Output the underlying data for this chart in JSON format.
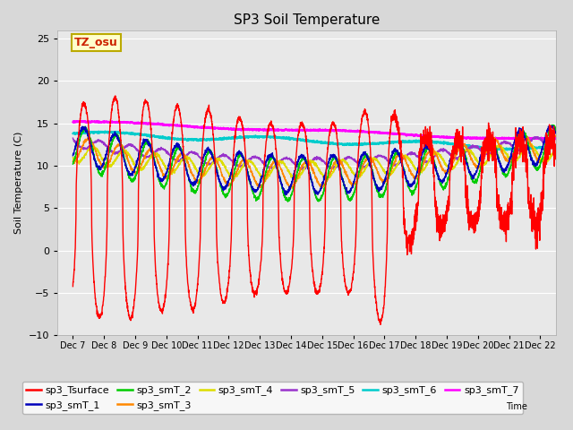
{
  "title": "SP3 Soil Temperature",
  "ylabel": "Soil Temperature (C)",
  "xlabel_text": "Time",
  "xlim": [
    6.5,
    22.5
  ],
  "ylim": [
    -10,
    26
  ],
  "yticks": [
    -10,
    -5,
    0,
    5,
    10,
    15,
    20,
    25
  ],
  "xtick_positions": [
    7,
    8,
    9,
    10,
    11,
    12,
    13,
    14,
    15,
    16,
    17,
    18,
    19,
    20,
    21,
    22
  ],
  "xtick_labels": [
    "Dec 7",
    "Dec 8",
    "Dec 9",
    "Dec 10",
    "Dec 11",
    "Dec 12",
    "Dec 13",
    "Dec 14",
    "Dec 15",
    "Dec 16",
    "Dec 17",
    "Dec 18",
    "Dec 19",
    "Dec 20",
    "Dec 21",
    "Dec 22"
  ],
  "legend_entries": [
    "sp3_Tsurface",
    "sp3_smT_1",
    "sp3_smT_2",
    "sp3_smT_3",
    "sp3_smT_4",
    "sp3_smT_5",
    "sp3_smT_6",
    "sp3_smT_7"
  ],
  "line_colors": [
    "#ff0000",
    "#0000bb",
    "#00cc00",
    "#ff8800",
    "#dddd00",
    "#9933cc",
    "#00cccc",
    "#ff00ff"
  ],
  "fig_facecolor": "#d8d8d8",
  "ax_facecolor": "#e8e8e8",
  "grid_color": "#ffffff",
  "annotation_text": "TZ_osu",
  "annotation_fgcolor": "#cc2200",
  "annotation_bgcolor": "#ffffcc",
  "annotation_edgecolor": "#bbaa00",
  "title_fontsize": 11,
  "label_fontsize": 8,
  "tick_fontsize": 7,
  "legend_fontsize": 8
}
